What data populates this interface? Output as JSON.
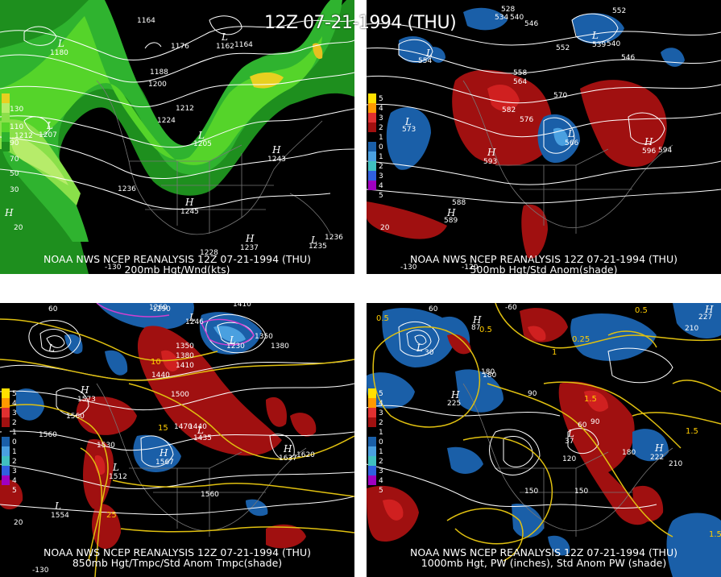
{
  "title": "12Z 07-21-1994 (THU)",
  "panels": [
    {
      "caption1": "NOAA NWS NCEP REANALYSIS 12Z 07-21-1994 (THU)",
      "caption2": "200mb Hgt/Wnd(kts)",
      "legend": [
        "130",
        "110",
        "90",
        "70",
        "50",
        "30"
      ],
      "contour_labels": [
        "1164",
        "1176",
        "1164",
        "1188",
        "1200",
        "1212",
        "1224",
        "1212",
        "1236",
        "1228",
        "1236"
      ],
      "center_labels": [
        "1180",
        "1162",
        "1207",
        "1205",
        "1243",
        "1245",
        "1237",
        "1235"
      ],
      "lon_labels": [
        "20",
        "-130"
      ]
    },
    {
      "caption1": "NOAA NWS NCEP REANALYSIS 12Z 07-21-1994 (THU)",
      "caption2": "500mb Hgt/Std Anom(shade)",
      "legend": [
        "5",
        "4",
        "3",
        "2",
        "1",
        "0",
        "1",
        "2",
        "3",
        "4",
        "5"
      ],
      "contour_labels": [
        "528",
        "534",
        "540",
        "546",
        "552",
        "546",
        "540",
        "552",
        "558",
        "564",
        "570",
        "576",
        "582",
        "588",
        "594"
      ],
      "center_labels": [
        "539",
        "573",
        "593",
        "566",
        "596",
        "589",
        "554"
      ],
      "lon_labels": [
        "20",
        "-130",
        "-120"
      ]
    },
    {
      "caption1": "NOAA NWS NCEP REANALYSIS 12Z 07-21-1994 (THU)",
      "caption2": "850mb Hgt/Tmpc/Std Anom Tmpc(shade)",
      "legend": [
        "5",
        "4",
        "3",
        "2",
        "1",
        "0",
        "1",
        "2",
        "3",
        "4",
        "5"
      ],
      "contour_labels": [
        "1260",
        "1290",
        "1410",
        "1350",
        "1380",
        "1350",
        "1380",
        "1410",
        "1440",
        "1470",
        "1500",
        "1530",
        "1560",
        "1560",
        "1620",
        "1560",
        "1440",
        "10",
        "15",
        "25"
      ],
      "center_labels": [
        "1573",
        "1567",
        "1512",
        "1554",
        "1435",
        "1637",
        "1246",
        "1230"
      ],
      "lon_labels": [
        "60",
        "20",
        "-130"
      ]
    },
    {
      "caption1": "NOAA NWS NCEP REANALYSIS 12Z 07-21-1994 (THU)",
      "caption2": "1000mb Hgt, PW (inches), Std Anom PW (shade)",
      "legend": [
        "5",
        "4",
        "3",
        "2",
        "1",
        "0",
        "1",
        "2",
        "3",
        "4",
        "5"
      ],
      "contour_labels": [
        "0.5",
        "0.5",
        "0.25",
        "0.5",
        "1.5",
        "1",
        "1.5",
        "1.5",
        "210",
        "180",
        "90",
        "120",
        "150",
        "180",
        "210",
        "30",
        "60",
        "90",
        "150",
        "180"
      ],
      "center_labels": [
        "87",
        "227",
        "225",
        "222",
        "37"
      ],
      "lon_labels": [
        "-60",
        "60"
      ]
    }
  ]
}
